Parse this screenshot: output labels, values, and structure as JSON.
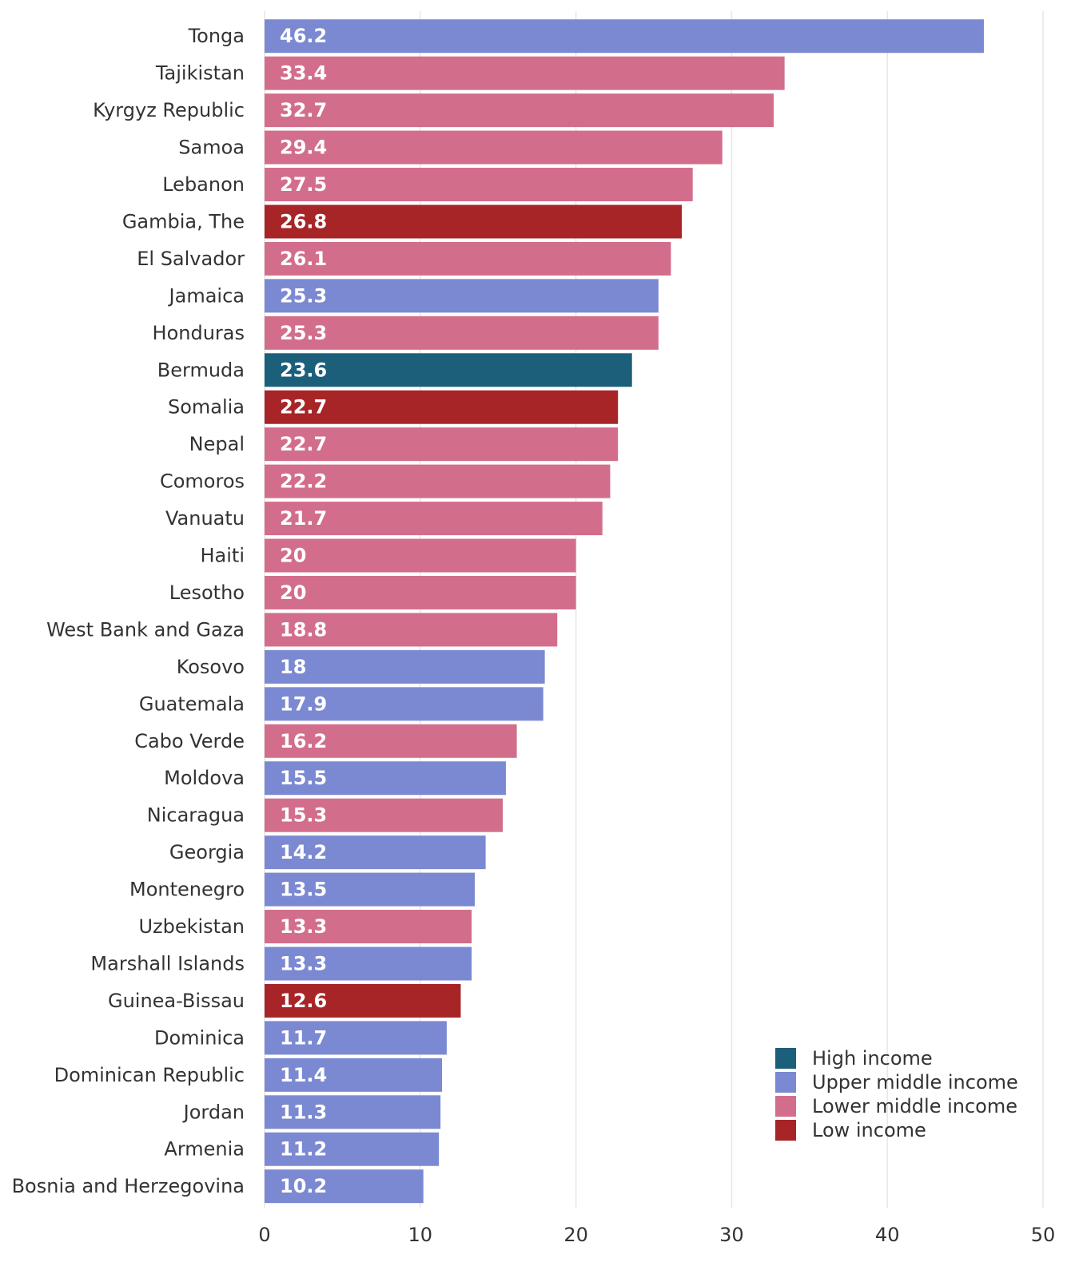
{
  "chart_data": {
    "type": "bar",
    "orientation": "horizontal",
    "categories": [
      "Tonga",
      "Tajikistan",
      "Kyrgyz Republic",
      "Samoa",
      "Lebanon",
      "Gambia, The",
      "El Salvador",
      "Jamaica",
      "Honduras",
      "Bermuda",
      "Somalia",
      "Nepal",
      "Comoros",
      "Vanuatu",
      "Haiti",
      "Lesotho",
      "West Bank and Gaza",
      "Kosovo",
      "Guatemala",
      "Cabo Verde",
      "Moldova",
      "Nicaragua",
      "Georgia",
      "Montenegro",
      "Uzbekistan",
      "Marshall Islands",
      "Guinea-Bissau",
      "Dominica",
      "Dominican Republic",
      "Jordan",
      "Armenia",
      "Bosnia and Herzegovina"
    ],
    "values": [
      46.2,
      33.4,
      32.7,
      29.4,
      27.5,
      26.8,
      26.1,
      25.3,
      25.3,
      23.6,
      22.7,
      22.7,
      22.2,
      21.7,
      20,
      20,
      18.8,
      18,
      17.9,
      16.2,
      15.5,
      15.3,
      14.2,
      13.5,
      13.3,
      13.3,
      12.6,
      11.7,
      11.4,
      11.3,
      11.2,
      10.2
    ],
    "value_labels": [
      "46.2",
      "33.4",
      "32.7",
      "29.4",
      "27.5",
      "26.8",
      "26.1",
      "25.3",
      "25.3",
      "23.6",
      "22.7",
      "22.7",
      "22.2",
      "21.7",
      "20",
      "20",
      "18.8",
      "18",
      "17.9",
      "16.2",
      "15.5",
      "15.3",
      "14.2",
      "13.5",
      "13.3",
      "13.3",
      "12.6",
      "11.7",
      "11.4",
      "11.3",
      "11.2",
      "10.2"
    ],
    "groups": [
      "Upper middle income",
      "Lower middle income",
      "Lower middle income",
      "Lower middle income",
      "Lower middle income",
      "Low income",
      "Lower middle income",
      "Upper middle income",
      "Lower middle income",
      "High income",
      "Low income",
      "Lower middle income",
      "Lower middle income",
      "Lower middle income",
      "Lower middle income",
      "Lower middle income",
      "Lower middle income",
      "Upper middle income",
      "Upper middle income",
      "Lower middle income",
      "Upper middle income",
      "Lower middle income",
      "Upper middle income",
      "Upper middle income",
      "Lower middle income",
      "Upper middle income",
      "Low income",
      "Upper middle income",
      "Upper middle income",
      "Upper middle income",
      "Upper middle income",
      "Upper middle income"
    ],
    "legend": [
      {
        "name": "High income",
        "color": "#1c5f7a"
      },
      {
        "name": "Upper middle income",
        "color": "#7b89d2"
      },
      {
        "name": "Lower middle income",
        "color": "#d26e8c"
      },
      {
        "name": "Low income",
        "color": "#a72427"
      }
    ],
    "legend_position": "bottom-right",
    "xticks": [
      "0",
      "10",
      "20",
      "30",
      "40",
      "50"
    ],
    "xlim": [
      0,
      50
    ],
    "grid": "vertical",
    "title": "",
    "xlabel": "",
    "ylabel": ""
  }
}
